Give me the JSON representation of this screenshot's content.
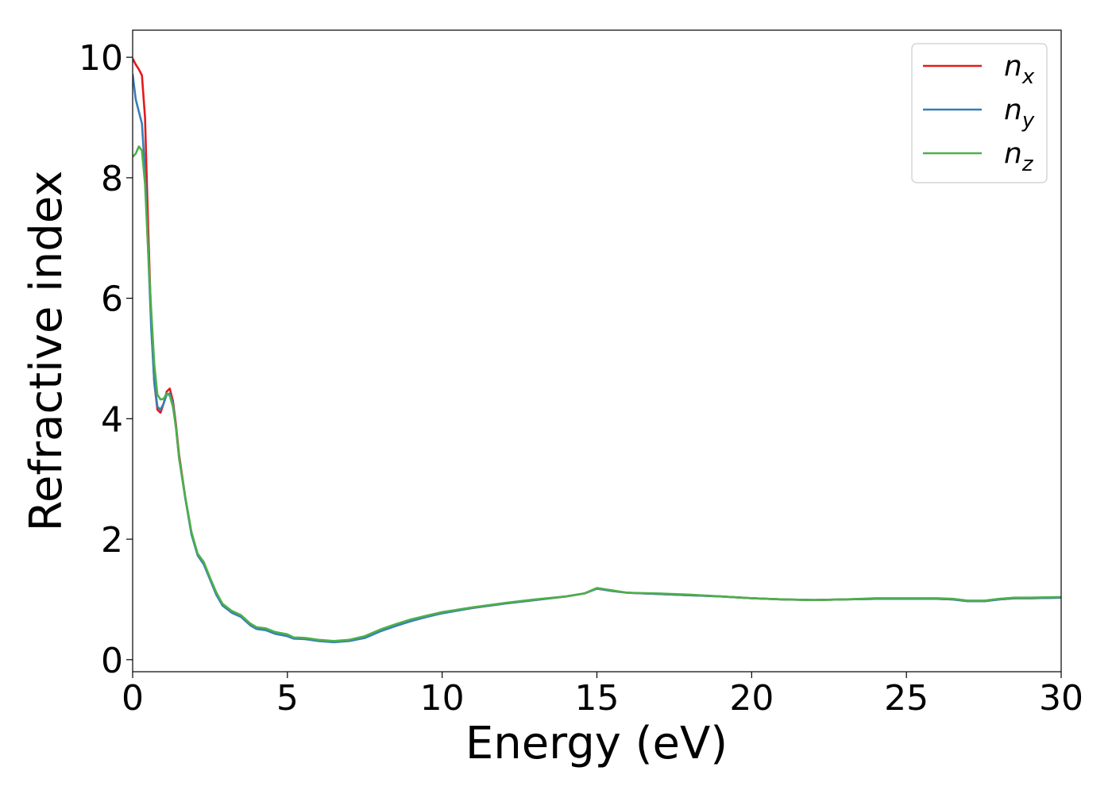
{
  "chart_data": {
    "type": "line",
    "title": "",
    "xlabel": "Energy (eV)",
    "ylabel": "Refractive index",
    "xlim": [
      0,
      30
    ],
    "ylim": [
      -0.2,
      10.45
    ],
    "x_ticks": [
      0,
      5,
      10,
      15,
      20,
      25,
      30
    ],
    "y_ticks": [
      0,
      2,
      4,
      6,
      8,
      10
    ],
    "grid": false,
    "legend_position": "top-right",
    "series": [
      {
        "name_base": "n",
        "name_sub": "x",
        "color": "#e41a1c",
        "points": [
          [
            0,
            9.98
          ],
          [
            0.1,
            9.88
          ],
          [
            0.2,
            9.8
          ],
          [
            0.3,
            9.7
          ],
          [
            0.4,
            9.0
          ],
          [
            0.5,
            7.2
          ],
          [
            0.6,
            5.6
          ],
          [
            0.7,
            4.6
          ],
          [
            0.8,
            4.15
          ],
          [
            0.9,
            4.1
          ],
          [
            1.0,
            4.25
          ],
          [
            1.1,
            4.45
          ],
          [
            1.2,
            4.5
          ],
          [
            1.3,
            4.3
          ],
          [
            1.4,
            3.9
          ],
          [
            1.5,
            3.4
          ],
          [
            1.7,
            2.7
          ],
          [
            1.9,
            2.1
          ],
          [
            2.1,
            1.75
          ],
          [
            2.3,
            1.6
          ],
          [
            2.5,
            1.35
          ],
          [
            2.7,
            1.1
          ],
          [
            2.9,
            0.92
          ],
          [
            3.2,
            0.8
          ],
          [
            3.5,
            0.72
          ],
          [
            3.8,
            0.58
          ],
          [
            4.0,
            0.52
          ],
          [
            4.3,
            0.5
          ],
          [
            4.6,
            0.44
          ],
          [
            5.0,
            0.4
          ],
          [
            5.2,
            0.36
          ],
          [
            5.6,
            0.35
          ],
          [
            6.0,
            0.32
          ],
          [
            6.5,
            0.3
          ],
          [
            7.0,
            0.32
          ],
          [
            7.5,
            0.37
          ],
          [
            8.0,
            0.48
          ],
          [
            8.5,
            0.57
          ],
          [
            9.0,
            0.65
          ],
          [
            9.5,
            0.72
          ],
          [
            10.0,
            0.78
          ],
          [
            11.0,
            0.86
          ],
          [
            12.0,
            0.93
          ],
          [
            13.0,
            0.99
          ],
          [
            14.0,
            1.05
          ],
          [
            14.6,
            1.1
          ],
          [
            15.0,
            1.18
          ],
          [
            15.5,
            1.14
          ],
          [
            16.0,
            1.11
          ],
          [
            17.0,
            1.09
          ],
          [
            18.0,
            1.07
          ],
          [
            19.0,
            1.05
          ],
          [
            20.0,
            1.02
          ],
          [
            21.0,
            1.0
          ],
          [
            22.0,
            0.99
          ],
          [
            23.0,
            1.0
          ],
          [
            24.0,
            1.01
          ],
          [
            25.0,
            1.01
          ],
          [
            26.0,
            1.01
          ],
          [
            26.5,
            1.0
          ],
          [
            27.0,
            0.97
          ],
          [
            27.5,
            0.97
          ],
          [
            28.0,
            1.0
          ],
          [
            28.5,
            1.02
          ],
          [
            29.0,
            1.02
          ],
          [
            30.0,
            1.03
          ]
        ]
      },
      {
        "name_base": "n",
        "name_sub": "y",
        "color": "#377eb8",
        "points": [
          [
            0,
            9.72
          ],
          [
            0.1,
            9.3
          ],
          [
            0.2,
            9.1
          ],
          [
            0.3,
            8.9
          ],
          [
            0.4,
            8.1
          ],
          [
            0.5,
            6.8
          ],
          [
            0.6,
            5.5
          ],
          [
            0.7,
            4.6
          ],
          [
            0.8,
            4.2
          ],
          [
            0.9,
            4.15
          ],
          [
            1.0,
            4.25
          ],
          [
            1.1,
            4.4
          ],
          [
            1.2,
            4.42
          ],
          [
            1.3,
            4.25
          ],
          [
            1.4,
            3.85
          ],
          [
            1.5,
            3.35
          ],
          [
            1.7,
            2.68
          ],
          [
            1.9,
            2.08
          ],
          [
            2.1,
            1.73
          ],
          [
            2.3,
            1.58
          ],
          [
            2.5,
            1.33
          ],
          [
            2.7,
            1.08
          ],
          [
            2.9,
            0.9
          ],
          [
            3.2,
            0.78
          ],
          [
            3.5,
            0.71
          ],
          [
            3.8,
            0.57
          ],
          [
            4.0,
            0.51
          ],
          [
            4.3,
            0.49
          ],
          [
            4.6,
            0.43
          ],
          [
            5.0,
            0.39
          ],
          [
            5.2,
            0.35
          ],
          [
            5.6,
            0.34
          ],
          [
            6.0,
            0.31
          ],
          [
            6.5,
            0.29
          ],
          [
            7.0,
            0.31
          ],
          [
            7.5,
            0.36
          ],
          [
            8.0,
            0.47
          ],
          [
            8.5,
            0.56
          ],
          [
            9.0,
            0.64
          ],
          [
            9.5,
            0.71
          ],
          [
            10.0,
            0.77
          ],
          [
            11.0,
            0.86
          ],
          [
            12.0,
            0.93
          ],
          [
            13.0,
            0.99
          ],
          [
            14.0,
            1.05
          ],
          [
            14.6,
            1.1
          ],
          [
            15.0,
            1.18
          ],
          [
            15.5,
            1.14
          ],
          [
            16.0,
            1.11
          ],
          [
            17.0,
            1.09
          ],
          [
            18.0,
            1.07
          ],
          [
            19.0,
            1.05
          ],
          [
            20.0,
            1.02
          ],
          [
            21.0,
            1.0
          ],
          [
            22.0,
            0.99
          ],
          [
            23.0,
            1.0
          ],
          [
            24.0,
            1.01
          ],
          [
            25.0,
            1.01
          ],
          [
            26.0,
            1.01
          ],
          [
            26.5,
            1.0
          ],
          [
            27.0,
            0.97
          ],
          [
            27.5,
            0.97
          ],
          [
            28.0,
            1.0
          ],
          [
            28.5,
            1.02
          ],
          [
            29.0,
            1.02
          ],
          [
            30.0,
            1.03
          ]
        ]
      },
      {
        "name_base": "n",
        "name_sub": "z",
        "color": "#4daf4a",
        "points": [
          [
            0,
            8.35
          ],
          [
            0.1,
            8.4
          ],
          [
            0.2,
            8.52
          ],
          [
            0.3,
            8.45
          ],
          [
            0.4,
            7.9
          ],
          [
            0.5,
            6.8
          ],
          [
            0.6,
            5.8
          ],
          [
            0.7,
            4.9
          ],
          [
            0.8,
            4.4
          ],
          [
            0.9,
            4.32
          ],
          [
            1.0,
            4.33
          ],
          [
            1.1,
            4.42
          ],
          [
            1.2,
            4.38
          ],
          [
            1.3,
            4.2
          ],
          [
            1.4,
            3.85
          ],
          [
            1.5,
            3.35
          ],
          [
            1.7,
            2.7
          ],
          [
            1.9,
            2.12
          ],
          [
            2.1,
            1.76
          ],
          [
            2.3,
            1.62
          ],
          [
            2.5,
            1.36
          ],
          [
            2.7,
            1.12
          ],
          [
            2.9,
            0.93
          ],
          [
            3.2,
            0.81
          ],
          [
            3.5,
            0.74
          ],
          [
            3.8,
            0.6
          ],
          [
            4.0,
            0.54
          ],
          [
            4.3,
            0.52
          ],
          [
            4.6,
            0.46
          ],
          [
            5.0,
            0.42
          ],
          [
            5.2,
            0.37
          ],
          [
            5.6,
            0.36
          ],
          [
            6.0,
            0.33
          ],
          [
            6.5,
            0.31
          ],
          [
            7.0,
            0.33
          ],
          [
            7.5,
            0.39
          ],
          [
            8.0,
            0.5
          ],
          [
            8.5,
            0.59
          ],
          [
            9.0,
            0.67
          ],
          [
            9.5,
            0.73
          ],
          [
            10.0,
            0.79
          ],
          [
            11.0,
            0.87
          ],
          [
            12.0,
            0.94
          ],
          [
            13.0,
            1.0
          ],
          [
            14.0,
            1.05
          ],
          [
            14.6,
            1.1
          ],
          [
            15.0,
            1.19
          ],
          [
            15.5,
            1.15
          ],
          [
            16.0,
            1.11
          ],
          [
            17.0,
            1.1
          ],
          [
            18.0,
            1.08
          ],
          [
            19.0,
            1.05
          ],
          [
            20.0,
            1.02
          ],
          [
            21.0,
            1.0
          ],
          [
            22.0,
            0.99
          ],
          [
            23.0,
            1.0
          ],
          [
            24.0,
            1.02
          ],
          [
            25.0,
            1.02
          ],
          [
            26.0,
            1.02
          ],
          [
            26.5,
            1.01
          ],
          [
            27.0,
            0.98
          ],
          [
            27.5,
            0.98
          ],
          [
            28.0,
            1.01
          ],
          [
            28.5,
            1.03
          ],
          [
            29.0,
            1.03
          ],
          [
            30.0,
            1.04
          ]
        ]
      }
    ]
  }
}
